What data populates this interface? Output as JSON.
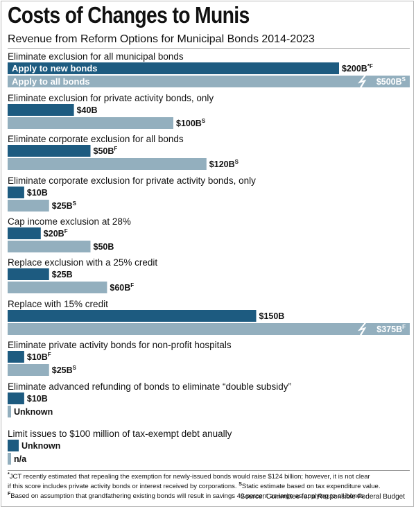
{
  "header": {
    "title": "Costs of Changes to Munis",
    "subtitle": "Revenue from Reform Options for Municipal Bonds 2014-2023"
  },
  "colors": {
    "new_bonds": "#1d5b80",
    "all_bonds": "#93afbe",
    "frame": "#b9b9b9"
  },
  "chart_data": {
    "type": "bar",
    "orientation": "horizontal",
    "units": "billions of dollars",
    "series": [
      {
        "name": "Apply to new bonds",
        "color": "#1d5b80"
      },
      {
        "name": "Apply to all bonds",
        "color": "#93afbe"
      }
    ],
    "categories": [
      {
        "label": "Eliminate exclusion for all municipal bonds",
        "bars": [
          {
            "value": 200,
            "text": "$200B",
            "mark": "*F",
            "legend": "Apply to new bonds"
          },
          {
            "value": 500,
            "text": "$500B",
            "mark": "S",
            "legend": "Apply to all bonds",
            "broken": true
          }
        ]
      },
      {
        "label": "Eliminate exclusion for private activity bonds, only",
        "bars": [
          {
            "value": 40,
            "text": "$40B",
            "mark": ""
          },
          {
            "value": 100,
            "text": "$100B",
            "mark": "S"
          }
        ]
      },
      {
        "label": "Eliminate corporate exclusion for all bonds",
        "bars": [
          {
            "value": 50,
            "text": "$50B",
            "mark": "F"
          },
          {
            "value": 120,
            "text": "$120B",
            "mark": "S"
          }
        ]
      },
      {
        "label": "Eliminate corporate exclusion for private activity bonds, only",
        "bars": [
          {
            "value": 10,
            "text": "$10B",
            "mark": ""
          },
          {
            "value": 25,
            "text": "$25B",
            "mark": "S"
          }
        ]
      },
      {
        "label": "Cap income exclusion at 28%",
        "bars": [
          {
            "value": 20,
            "text": "$20B",
            "mark": "F"
          },
          {
            "value": 50,
            "text": "$50B",
            "mark": ""
          }
        ]
      },
      {
        "label": "Replace exclusion with a 25% credit",
        "bars": [
          {
            "value": 25,
            "text": "$25B",
            "mark": ""
          },
          {
            "value": 60,
            "text": "$60B",
            "mark": "F"
          }
        ]
      },
      {
        "label": "Replace with 15% credit",
        "bars": [
          {
            "value": 150,
            "text": "$150B",
            "mark": ""
          },
          {
            "value": 375,
            "text": "$375B",
            "mark": "F",
            "broken": true
          }
        ]
      },
      {
        "label": "Eliminate private activity bonds for non-profit hospitals",
        "bars": [
          {
            "value": 10,
            "text": "$10B",
            "mark": "F"
          },
          {
            "value": 25,
            "text": "$25B",
            "mark": "S"
          }
        ]
      },
      {
        "label": "Eliminate advanced refunding of bonds to eliminate “double subsidy”",
        "bars": [
          {
            "value": 10,
            "text": "$10B",
            "mark": ""
          },
          {
            "value": null,
            "text": "Unknown",
            "mark": ""
          }
        ]
      },
      {
        "label": "Limit issues to $100 million of tax-exempt debt anually",
        "bars": [
          {
            "value": null,
            "text": "Unknown",
            "mark": ""
          },
          {
            "value": null,
            "text": "n/a",
            "mark": ""
          }
        ]
      }
    ]
  },
  "footnotes": {
    "line1": "JCT recently estimated that repealing the exemption for newly-issued bonds would raise $124 billion; however, it is not clear",
    "line2": "if this score includes private activity bonds or interest received by corporations. ",
    "line2b": "Static estimate based on tax expenditure value.",
    "line3": "Based on assumption that grandfathering existing bonds will result in savings 40 percent as large as applying to all bonds.",
    "mark_star": "*",
    "mark_s": "S",
    "mark_f": "F",
    "source": "Source: Committee for a Responsible Federal Budget"
  }
}
